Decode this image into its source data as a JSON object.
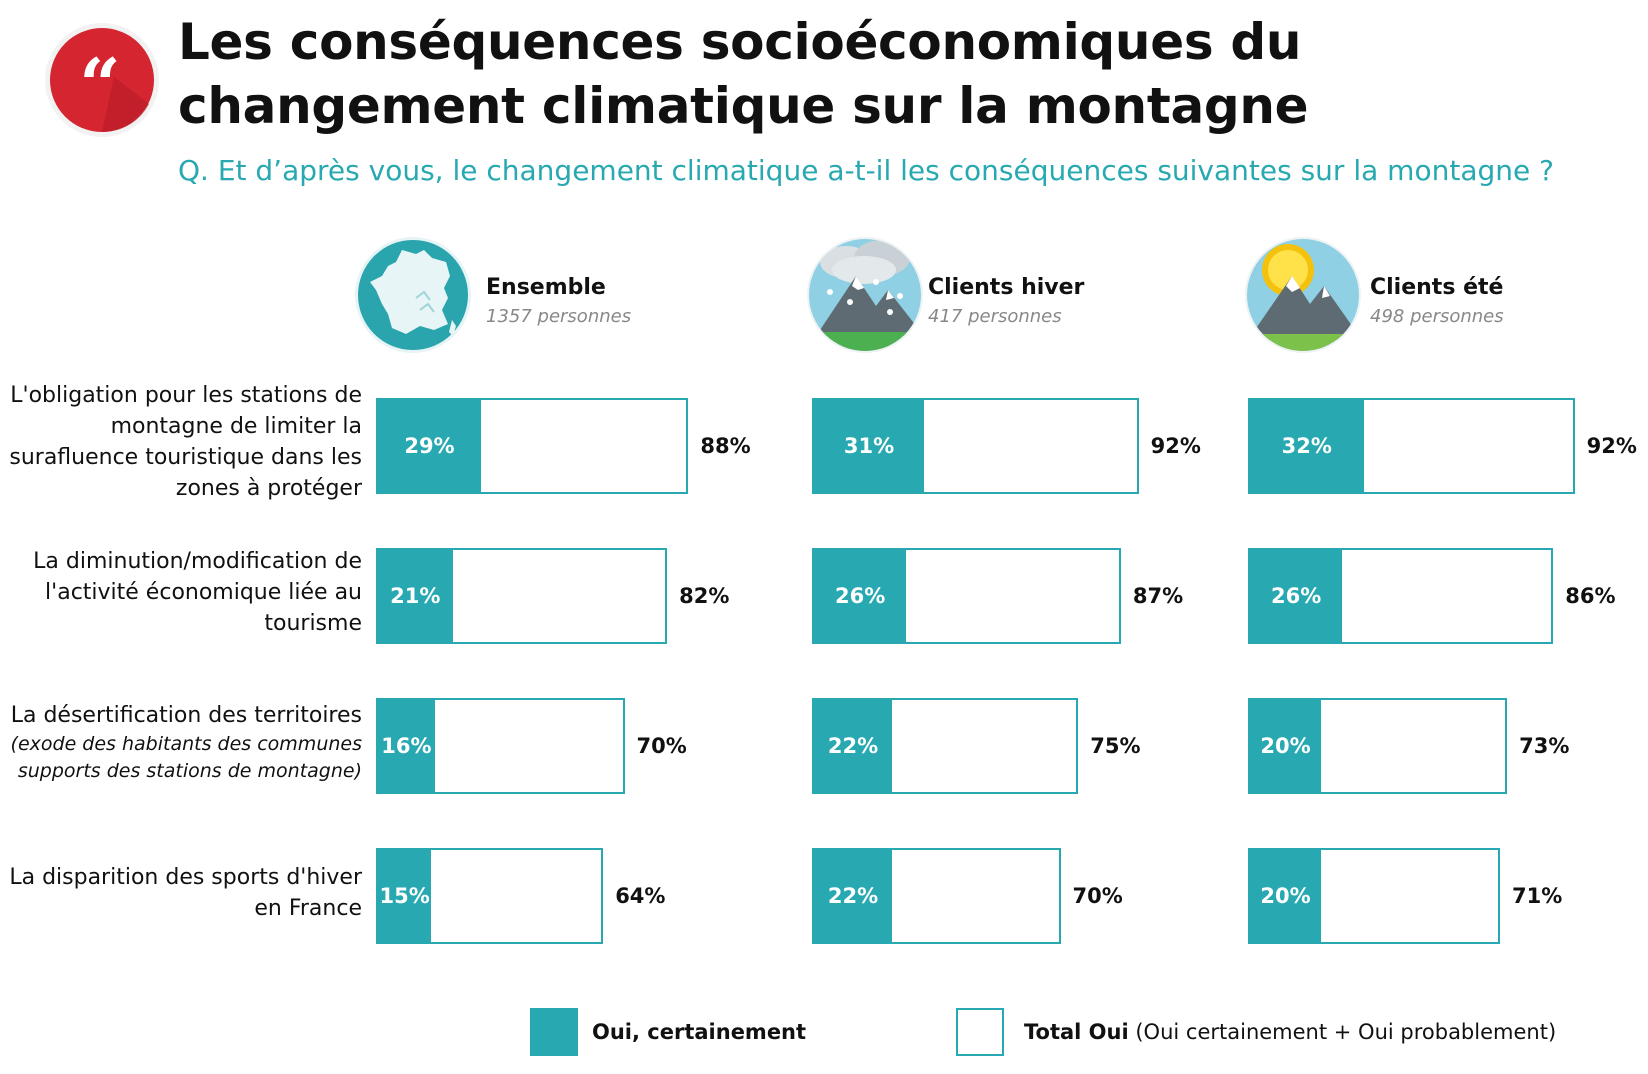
{
  "header": {
    "title": "Les conséquences socioéconomiques du changement climatique sur la montagne",
    "question": "Q. Et d’après vous, le changement climatique a-t-il les conséquences suivantes sur la montagne ?",
    "quote_icon": "quote-icon"
  },
  "groups": [
    {
      "name": "Ensemble",
      "count": "1357 personnes",
      "icon": "france-map-icon"
    },
    {
      "name": "Clients hiver",
      "count": "417 personnes",
      "icon": "snowy-mountain-icon"
    },
    {
      "name": "Clients été",
      "count": "498 personnes",
      "icon": "sunny-mountain-icon"
    }
  ],
  "rows": [
    {
      "label": "L'obligation pour les stations de montagne de limiter la surafluence touristique dans les zones à protéger",
      "note": ""
    },
    {
      "label": "La diminution/modification de l'activité économique liée au tourisme",
      "note": ""
    },
    {
      "label": "La désertification des territoires",
      "note": "(exode des habitants des communes supports des stations de montagne)"
    },
    {
      "label": "La disparition des sports d'hiver en France",
      "note": ""
    }
  ],
  "legend": {
    "certain_label": "Oui, certainement",
    "total_label_bold": "Total Oui",
    "total_label_rest": " (Oui certainement + Oui probablement)"
  },
  "colors": {
    "accent": "#28a9b2",
    "quote_red": "#d42531"
  },
  "chart_data": [
    {
      "type": "bar",
      "title": "Ensemble",
      "categories": [
        "L'obligation pour les stations de montagne de limiter la surafluence touristique dans les zones à protéger",
        "La diminution/modification de l'activité économique liée au tourisme",
        "La désertification des territoires",
        "La disparition des sports d'hiver en France"
      ],
      "series": [
        {
          "name": "Oui, certainement",
          "values": [
            29,
            21,
            16,
            15
          ],
          "labels": [
            "29%",
            "21%",
            "16%",
            "15%"
          ]
        },
        {
          "name": "Total Oui",
          "values": [
            88,
            82,
            70,
            64
          ],
          "labels": [
            "88%",
            "82%",
            "70%",
            "64%"
          ]
        }
      ]
    },
    {
      "type": "bar",
      "title": "Clients hiver",
      "categories": [
        "L'obligation pour les stations de montagne de limiter la surafluence touristique dans les zones à protéger",
        "La diminution/modification de l'activité économique liée au tourisme",
        "La désertification des territoires",
        "La disparition des sports d'hiver en France"
      ],
      "series": [
        {
          "name": "Oui, certainement",
          "values": [
            31,
            26,
            22,
            22
          ],
          "labels": [
            "31%",
            "26%",
            "22%",
            "22%"
          ]
        },
        {
          "name": "Total Oui",
          "values": [
            92,
            87,
            75,
            70
          ],
          "labels": [
            "92%",
            "87%",
            "75%",
            "70%"
          ]
        }
      ]
    },
    {
      "type": "bar",
      "title": "Clients été",
      "categories": [
        "L'obligation pour les stations de montagne de limiter la surafluence touristique dans les zones à protéger",
        "La diminution/modification de l'activité économique liée au tourisme",
        "La désertification des territoires",
        "La disparition des sports d'hiver en France"
      ],
      "series": [
        {
          "name": "Oui, certainement",
          "values": [
            32,
            26,
            20,
            20
          ],
          "labels": [
            "32%",
            "26%",
            "20%",
            "20%"
          ]
        },
        {
          "name": "Total Oui",
          "values": [
            92,
            86,
            73,
            71
          ],
          "labels": [
            "92%",
            "86%",
            "73%",
            "71%"
          ]
        }
      ]
    }
  ]
}
